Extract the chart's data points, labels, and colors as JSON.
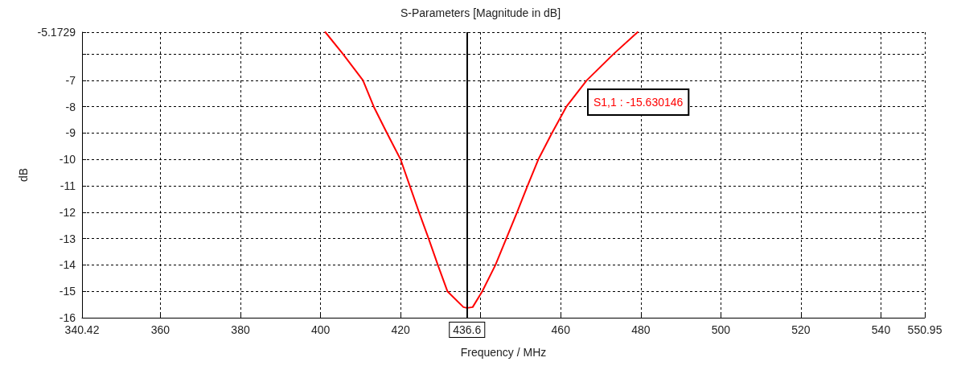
{
  "chart_data": {
    "type": "line",
    "title": "S-Parameters [Magnitude in dB]",
    "xlabel": "Frequency / MHz",
    "ylabel": "dB",
    "annotations": [
      "S1,1 : -15.630146"
    ],
    "series": [
      {
        "color": "#ff0000",
        "x": [
          401.2,
          405.6,
          410.6,
          413.3,
          416.6,
          420,
          422.3,
          424.6,
          427,
          429.3,
          431.7,
          435.7,
          436.6,
          438,
          440.4,
          443.7,
          446.4,
          449.1,
          451.7,
          454.4,
          457.8,
          461.4,
          466.5,
          473.2,
          479.2
        ],
        "values": [
          -5.1729,
          -6,
          -7,
          -8,
          -9,
          -10,
          -11,
          -12,
          -13,
          -14,
          -15,
          -15.6,
          -15.630146,
          -15.6,
          -15,
          -14,
          -13,
          -12,
          -11,
          -10,
          -9,
          -8,
          -7,
          -6,
          -5.1729
        ]
      }
    ],
    "xlim": [
      340.42,
      550.95
    ],
    "xticks": [
      340.42,
      360,
      380,
      400,
      420,
      {
        "value": 440,
        "label": null
      },
      460,
      480,
      500,
      520,
      540,
      550.95
    ],
    "ylim": [
      -16,
      -5.1729
    ],
    "yticks": [
      -16,
      -15,
      -14,
      -13,
      -12,
      -11,
      -10,
      -9,
      -8,
      -7,
      {
        "value": -6,
        "label": null
      },
      -5.1729
    ],
    "ref_lines": [
      {
        "axis": "x",
        "value": 436.6,
        "label": "436.6",
        "color": "#000000",
        "line_style": "solid"
      }
    ],
    "grid": true,
    "marker": "none",
    "line_style": "solid"
  }
}
